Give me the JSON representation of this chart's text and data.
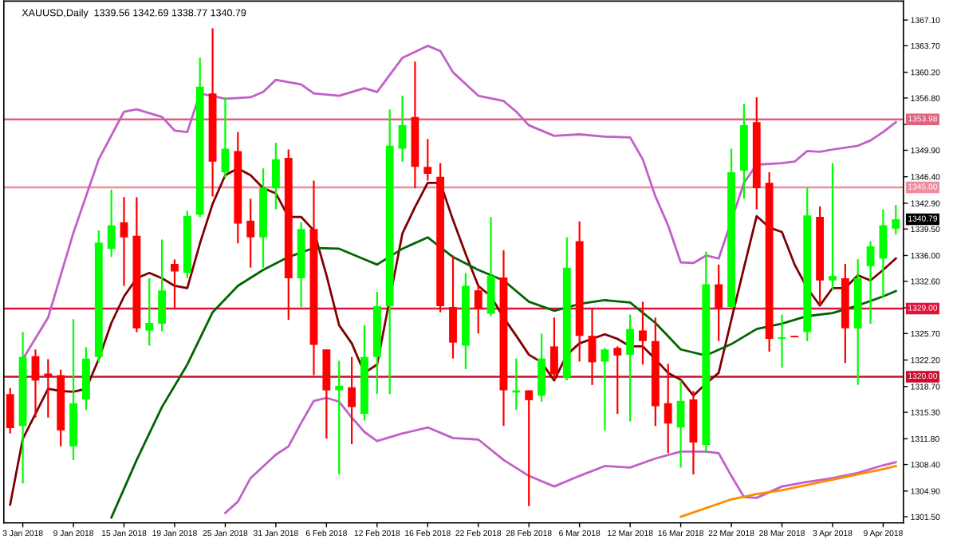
{
  "chart_data": {
    "type": "candlestick",
    "title": "XAUUSD,Daily  1339.56 1342.69 1338.77 1340.79",
    "categories": [
      null,
      "3 Jan 2018",
      null,
      null,
      null,
      "9 Jan 2018",
      null,
      null,
      null,
      "15 Jan 2018",
      null,
      null,
      null,
      "19 Jan 2018",
      null,
      null,
      null,
      "25 Jan 2018",
      null,
      null,
      null,
      "31 Jan 2018",
      null,
      null,
      null,
      "6 Feb 2018",
      null,
      null,
      null,
      "12 Feb 2018",
      null,
      null,
      null,
      "16 Feb 2018",
      null,
      null,
      null,
      "22 Feb 2018",
      null,
      null,
      null,
      "28 Feb 2018",
      null,
      null,
      null,
      "6 Mar 2018",
      null,
      null,
      null,
      "12 Mar 2018",
      null,
      null,
      null,
      "16 Mar 2018",
      null,
      null,
      null,
      "22 Mar 2018",
      null,
      null,
      null,
      "28 Mar 2018",
      null,
      null,
      null,
      "3 Apr 2018",
      null,
      null,
      null,
      "9 Apr 2018",
      null
    ],
    "ohlc": [
      [
        1317.7,
        1318.5,
        1312.5,
        1313.2
      ],
      [
        1313.5,
        1325.9,
        1305.9,
        1322.6
      ],
      [
        1322.7,
        1323.6,
        1314.6,
        1319.5
      ],
      [
        1320.4,
        1322.3,
        1314.6,
        1320.0
      ],
      [
        1320.2,
        1320.9,
        1310.8,
        1312.9
      ],
      [
        1310.8,
        1327.6,
        1309.0,
        1316.5
      ],
      [
        1317.0,
        1323.9,
        1315.6,
        1322.4
      ],
      [
        1322.6,
        1339.3,
        1321.9,
        1337.7
      ],
      [
        1336.9,
        1344.7,
        1335.8,
        1340.0
      ],
      [
        1340.4,
        1343.7,
        1332.0,
        1338.4
      ],
      [
        1338.6,
        1343.7,
        1325.9,
        1326.4
      ],
      [
        1326.1,
        1333.0,
        1324.1,
        1327.1
      ],
      [
        1327.0,
        1338.1,
        1326.0,
        1331.4
      ],
      [
        1334.9,
        1335.5,
        1328.9,
        1333.9
      ],
      [
        1333.7,
        1341.9,
        1333.0,
        1341.2
      ],
      [
        1341.4,
        1362.1,
        1341.1,
        1358.3
      ],
      [
        1357.4,
        1366.0,
        1343.8,
        1348.4
      ],
      [
        1347.0,
        1356.9,
        1346.3,
        1350.1
      ],
      [
        1349.8,
        1352.3,
        1337.6,
        1340.2
      ],
      [
        1340.6,
        1343.5,
        1334.4,
        1338.4
      ],
      [
        1338.4,
        1347.5,
        1334.4,
        1344.9
      ],
      [
        1344.9,
        1350.9,
        1342.1,
        1348.7
      ],
      [
        1348.9,
        1350.0,
        1327.5,
        1333.0
      ],
      [
        1333.0,
        1340.4,
        1329.2,
        1339.5
      ],
      [
        1339.5,
        1345.9,
        1320.2,
        1324.2
      ],
      [
        1323.6,
        1323.6,
        1311.8,
        1318.2
      ],
      [
        1318.2,
        1322.1,
        1307.1,
        1318.8
      ],
      [
        1318.6,
        1322.6,
        1311.1,
        1316.0
      ],
      [
        1315.1,
        1326.8,
        1314.2,
        1322.6
      ],
      [
        1322.6,
        1331.2,
        1317.7,
        1329.3
      ],
      [
        1329.3,
        1355.3,
        1317.7,
        1350.5
      ],
      [
        1350.1,
        1357.1,
        1348.4,
        1353.2
      ],
      [
        1354.3,
        1361.6,
        1344.9,
        1347.7
      ],
      [
        1347.7,
        1351.4,
        1345.9,
        1346.8
      ],
      [
        1346.4,
        1348.2,
        1328.5,
        1329.3
      ],
      [
        1329.2,
        1336.0,
        1322.4,
        1324.5
      ],
      [
        1324.1,
        1333.7,
        1321.0,
        1332.0
      ],
      [
        1331.4,
        1332.0,
        1325.7,
        1328.9
      ],
      [
        1328.3,
        1341.1,
        1328.0,
        1333.3
      ],
      [
        1333.1,
        1336.7,
        1313.5,
        1318.2
      ],
      [
        1317.9,
        1322.4,
        1315.6,
        1318.2
      ],
      [
        1318.2,
        1318.2,
        1302.9,
        1316.9
      ],
      [
        1317.5,
        1325.7,
        1316.7,
        1322.4
      ],
      [
        1324.0,
        1327.8,
        1319.6,
        1320.3
      ],
      [
        1319.8,
        1338.4,
        1319.5,
        1334.4
      ],
      [
        1337.9,
        1340.5,
        1322.0,
        1325.4
      ],
      [
        1325.4,
        1328.9,
        1318.9,
        1321.9
      ],
      [
        1322.0,
        1323.8,
        1312.9,
        1323.6
      ],
      [
        1323.8,
        1324.0,
        1315.1,
        1322.8
      ],
      [
        1322.9,
        1328.2,
        1314.1,
        1326.3
      ],
      [
        1326.1,
        1329.9,
        1321.6,
        1324.7
      ],
      [
        1324.7,
        1327.8,
        1313.5,
        1316.1
      ],
      [
        1316.5,
        1321.7,
        1309.9,
        1313.8
      ],
      [
        1313.3,
        1319.5,
        1308.0,
        1316.8
      ],
      [
        1317.0,
        1318.1,
        1307.1,
        1311.3
      ],
      [
        1311.0,
        1336.5,
        1309.9,
        1332.2
      ],
      [
        1332.2,
        1334.8,
        1324.7,
        1329.1
      ],
      [
        1329.2,
        1350.1,
        1329.1,
        1347.0
      ],
      [
        1347.2,
        1356.0,
        1343.5,
        1353.2
      ],
      [
        1353.6,
        1356.9,
        1342.1,
        1344.9
      ],
      [
        1345.6,
        1347.0,
        1323.3,
        1325.0
      ],
      [
        1325.0,
        1328.2,
        1321.2,
        1325.2
      ],
      [
        1325.4,
        1325.4,
        1325.2,
        1325.2
      ],
      [
        1325.9,
        1344.9,
        1324.7,
        1341.3
      ],
      [
        1341.1,
        1342.5,
        1329.4,
        1332.7
      ],
      [
        1332.7,
        1348.2,
        1331.5,
        1333.3
      ],
      [
        1333.0,
        1334.9,
        1321.8,
        1326.4
      ],
      [
        1326.4,
        1335.5,
        1318.9,
        1333.0
      ],
      [
        1334.6,
        1337.9,
        1327.0,
        1337.2
      ],
      [
        1335.6,
        1342.1,
        1330.5,
        1340.0
      ],
      [
        1339.56,
        1342.69,
        1338.77,
        1340.79
      ]
    ],
    "colors": [
      "#ff0000",
      "#00ff00",
      "#ff0000",
      "#ff0000",
      "#ff0000",
      "#00ff00",
      "#00ff00",
      "#00ff00",
      "#00ff00",
      "#ff0000",
      "#ff0000",
      "#00ff00",
      "#00ff00",
      "#ff0000",
      "#00ff00",
      "#00ff00",
      "#ff0000",
      "#00ff00",
      "#ff0000",
      "#ff0000",
      "#00ff00",
      "#00ff00",
      "#ff0000",
      "#00ff00",
      "#ff0000",
      "#ff0000",
      "#00ff00",
      "#ff0000",
      "#00ff00",
      "#00ff00",
      "#00ff00",
      "#00ff00",
      "#ff0000",
      "#ff0000",
      "#ff0000",
      "#ff0000",
      "#00ff00",
      "#ff0000",
      "#00ff00",
      "#ff0000",
      "#00ff00",
      "#ff0000",
      "#00ff00",
      "#ff0000",
      "#00ff00",
      "#ff0000",
      "#ff0000",
      "#00ff00",
      "#ff0000",
      "#00ff00",
      "#ff0000",
      "#ff0000",
      "#ff0000",
      "#00ff00",
      "#ff0000",
      "#00ff00",
      "#ff0000",
      "#00ff00",
      "#00ff00",
      "#ff0000",
      "#ff0000",
      "#00ff00",
      "#ff0000",
      "#00ff00",
      "#ff0000",
      "#00ff00",
      "#ff0000",
      "#00ff00",
      "#00ff00",
      "#00ff00",
      "#00ff00"
    ],
    "series": [
      {
        "type": "line",
        "color": "#800000",
        "values": [
          1303.1,
          1311.8,
          null,
          1318.4,
          1318.1,
          1318.0,
          1318.4,
          1322.3,
          1327.1,
          1330.6,
          1333.0,
          1333.7,
          1333.0,
          1332.0,
          1331.7,
          1337.6,
          1342.8,
          1346.6,
          1347.5,
          1346.6,
          1344.9,
          1344.2,
          1341.1,
          1341.1,
          1339.3,
          1333.4,
          1326.8,
          1324.4,
          1320.5,
          1321.6,
          null,
          1338.9,
          1342.4,
          1345.6,
          1345.6,
          1340.7,
          1336.2,
          1332.0,
          1330.6,
          1327.8,
          1325.4,
          1322.9,
          1321.9,
          1319.5,
          1322.9,
          1324.4,
          1325.0,
          1325.6,
          1325.0,
          1324.0,
          1324.0,
          1322.3,
          1320.5,
          1319.6,
          1317.5,
          1319.1,
          1320.5,
          1327.5,
          1334.4,
          1341.2,
          1339.7,
          1339.1,
          1334.8,
          1331.7,
          1329.4,
          1331.7,
          1331.7,
          1333.4,
          1332.7,
          1334.1,
          1335.6
        ]
      },
      {
        "type": "line",
        "color": "#006400",
        "values": [
          null,
          null,
          null,
          null,
          null,
          null,
          null,
          null,
          1301.4,
          null,
          1309.0,
          null,
          1316.0,
          null,
          1321.6,
          null,
          1328.5,
          null,
          1332.0,
          null,
          1334.1,
          null,
          1335.8,
          null,
          1337.0,
          null,
          1336.9,
          null,
          1335.5,
          1334.8,
          null,
          1336.9,
          null,
          1338.4,
          null,
          1335.8,
          null,
          1334.1,
          null,
          1332.7,
          null,
          1329.9,
          null,
          1328.7,
          null,
          1329.6,
          null,
          1330.1,
          null,
          1329.8,
          null,
          1327.1,
          null,
          1323.6,
          null,
          1322.8,
          null,
          1324.3,
          null,
          1326.3,
          null,
          1327.0,
          null,
          1328.0,
          null,
          1328.4,
          null,
          1329.4,
          null,
          1330.6,
          1331.3
        ]
      },
      {
        "type": "line",
        "color": "#c060c8",
        "values": [
          null,
          1322.3,
          null,
          1327.8,
          null,
          1339.0,
          null,
          1348.7,
          null,
          1355.0,
          1355.3,
          null,
          1354.3,
          1352.5,
          1352.3,
          1357.4,
          null,
          1356.7,
          null,
          1356.9,
          1357.6,
          1359.2,
          null,
          1358.6,
          1357.4,
          null,
          1357.1,
          null,
          1358.1,
          1357.6,
          null,
          1362.1,
          null,
          1363.7,
          1363.0,
          1360.2,
          null,
          1357.1,
          null,
          1356.4,
          1355.0,
          1353.2,
          null,
          1351.8,
          null,
          1352.0,
          null,
          1351.7,
          null,
          1351.6,
          1348.7,
          1343.8,
          1340.0,
          1335.1,
          1335.0,
          1336.0,
          1335.6,
          null,
          1345.6,
          1348.0,
          null,
          1348.2,
          1348.4,
          1349.8,
          1349.7,
          1350.0,
          null,
          1350.5,
          1351.2,
          1352.3,
          1353.6
        ]
      },
      {
        "type": "line",
        "color": "#c060c8",
        "values": [
          null,
          null,
          null,
          null,
          null,
          null,
          null,
          null,
          null,
          null,
          null,
          null,
          null,
          null,
          null,
          null,
          null,
          1302.0,
          1303.5,
          1306.6,
          null,
          1309.7,
          1310.8,
          1313.9,
          1316.8,
          1317.2,
          1316.7,
          1314.6,
          1312.7,
          1311.5,
          null,
          1312.5,
          null,
          1313.3,
          null,
          1311.9,
          null,
          1311.7,
          null,
          1309.0,
          null,
          1306.9,
          null,
          1305.5,
          null,
          1306.9,
          null,
          1308.2,
          null,
          1308.0,
          null,
          1309.2,
          null,
          1310.1,
          null,
          1310.1,
          1309.9,
          1306.9,
          1304.1,
          1304.0,
          null,
          1305.5,
          null,
          1306.1,
          null,
          1306.6,
          null,
          1307.3,
          null,
          1308.3,
          1308.7
        ]
      },
      {
        "type": "line",
        "color": "#ff8c00",
        "values": [
          null,
          null,
          null,
          null,
          null,
          null,
          null,
          null,
          null,
          null,
          null,
          null,
          null,
          null,
          null,
          null,
          null,
          null,
          null,
          null,
          null,
          null,
          null,
          null,
          null,
          null,
          null,
          null,
          null,
          null,
          null,
          null,
          null,
          null,
          null,
          null,
          null,
          null,
          null,
          null,
          null,
          null,
          null,
          null,
          null,
          null,
          null,
          null,
          null,
          null,
          null,
          null,
          null,
          1301.5,
          null,
          null,
          null,
          1303.8,
          null,
          1304.5,
          null,
          1305.0,
          null,
          1305.7,
          null,
          1306.4,
          null,
          1307.1,
          null,
          1307.8,
          1308.2
        ]
      }
    ],
    "ref_lines": [
      {
        "axis": "y",
        "value": 1353.98,
        "label": "1353.98",
        "color": "#e0607e"
      },
      {
        "axis": "y",
        "value": 1345.0,
        "label": "1345.00",
        "color": "#f08ca0"
      },
      {
        "axis": "y",
        "value": 1329.0,
        "label": "1329.00",
        "color": "#dc143c"
      },
      {
        "axis": "y",
        "value": 1320.0,
        "label": "1320.00",
        "color": "#c8102e"
      }
    ],
    "annotations": [
      "1340.79"
    ],
    "ylim": [
      1300.7,
      1369.6
    ],
    "yticks": [
      {
        "value": 1367.1,
        "label": "1367.10"
      },
      {
        "value": 1363.7,
        "label": "1363.70"
      },
      {
        "value": 1360.2,
        "label": "1360.20"
      },
      {
        "value": 1356.8,
        "label": "1356.80"
      },
      {
        "value": 1353.3,
        "label": null
      },
      {
        "value": 1349.9,
        "label": "1349.90"
      },
      {
        "value": 1346.4,
        "label": "1346.40"
      },
      {
        "value": 1342.9,
        "label": "1342.90"
      },
      {
        "value": 1339.5,
        "label": "1339.50"
      },
      {
        "value": 1336.0,
        "label": "1336.00"
      },
      {
        "value": 1332.6,
        "label": "1332.60"
      },
      {
        "value": 1329.1,
        "label": null
      },
      {
        "value": 1325.7,
        "label": "1325.70"
      },
      {
        "value": 1322.2,
        "label": "1322.20"
      },
      {
        "value": 1318.7,
        "label": "1318.70"
      },
      {
        "value": 1315.3,
        "label": "1315.30"
      },
      {
        "value": 1311.8,
        "label": "1311.80"
      },
      {
        "value": 1308.4,
        "label": "1308.40"
      },
      {
        "value": 1304.9,
        "label": "1304.90"
      },
      {
        "value": 1301.5,
        "label": "1301.50"
      }
    ],
    "grid": false,
    "legend": false
  }
}
